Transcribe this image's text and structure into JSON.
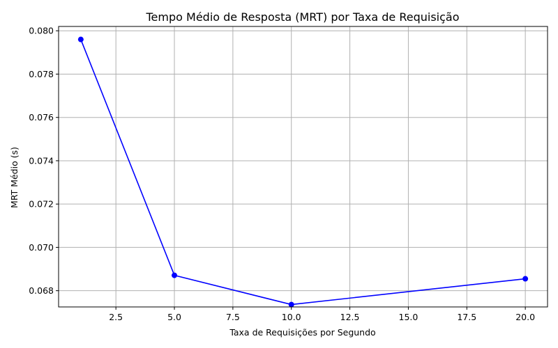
{
  "chart_data": {
    "type": "line",
    "title": "Tempo Médio de Resposta (MRT) por Taxa de Requisição",
    "xlabel": "Taxa de Requisições por Segundo",
    "ylabel": "MRT Médio (s)",
    "x": [
      1,
      5,
      10,
      20
    ],
    "series": [
      {
        "values": [
          0.0796,
          0.06871,
          0.06736,
          0.06855
        ],
        "color": "#0000ff",
        "marker": "circle"
      }
    ],
    "xlim": [
      0.05,
      20.95
    ],
    "ylim": [
      0.06725,
      0.0802
    ],
    "xticks": [
      2.5,
      5.0,
      7.5,
      10.0,
      12.5,
      15.0,
      17.5,
      20.0
    ],
    "xtick_labels": [
      "2.5",
      "5.0",
      "7.5",
      "10.0",
      "12.5",
      "15.0",
      "17.5",
      "20.0"
    ],
    "yticks": [
      0.068,
      0.07,
      0.072,
      0.074,
      0.076,
      0.078,
      0.08
    ],
    "ytick_labels": [
      "0.068",
      "0.070",
      "0.072",
      "0.074",
      "0.076",
      "0.078",
      "0.080"
    ],
    "grid": true,
    "legend": false
  }
}
